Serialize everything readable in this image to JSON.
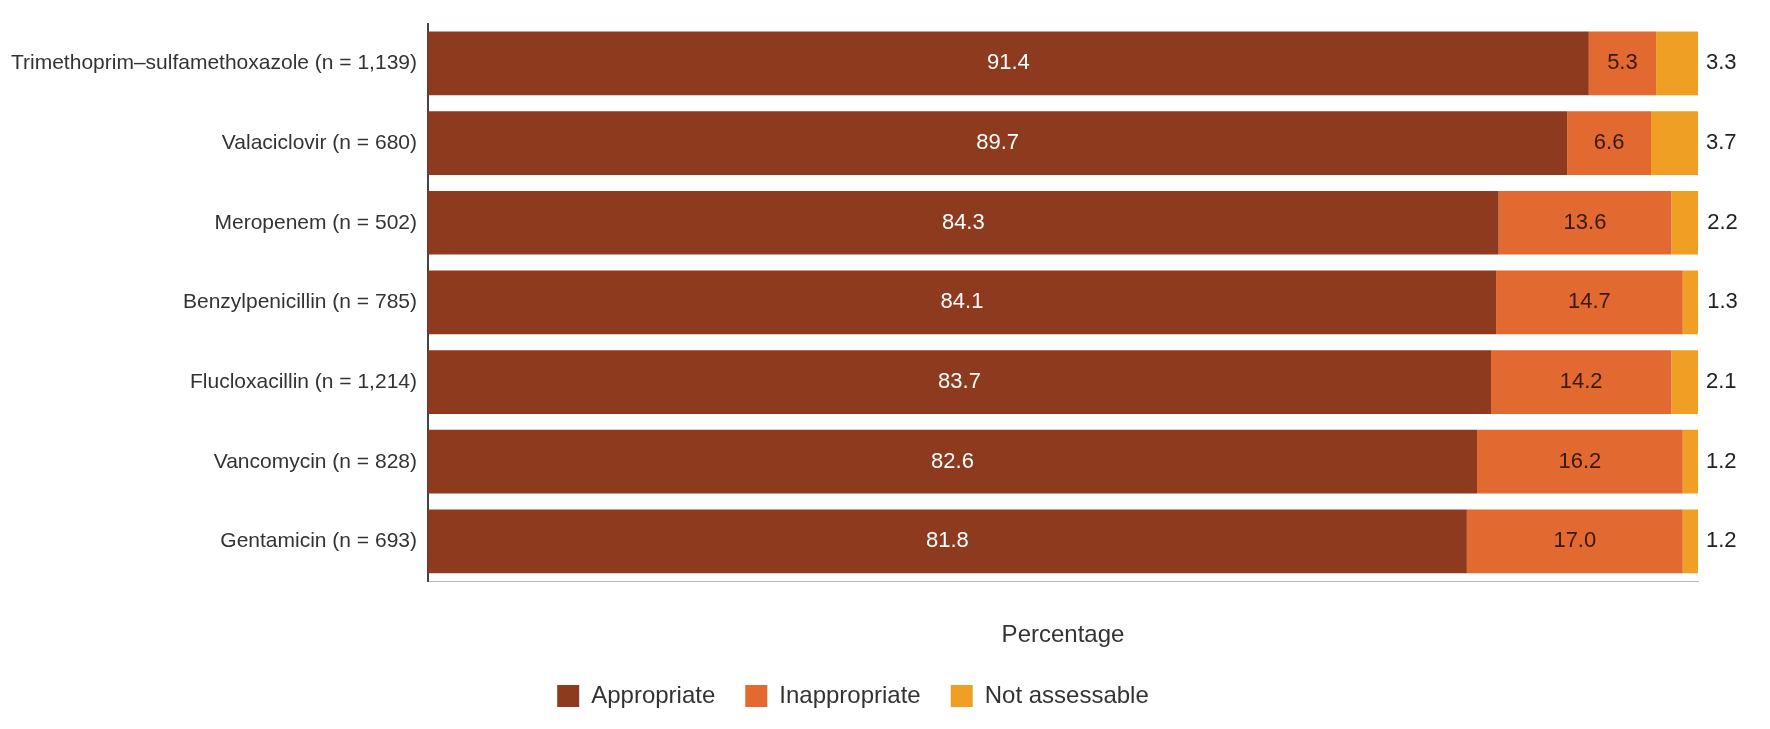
{
  "chart_data": {
    "type": "bar",
    "orientation": "horizontal",
    "stacked": true,
    "xlabel": "Percentage",
    "xlim": [
      0,
      100
    ],
    "tick_labels": "y",
    "grid": false,
    "legend": "bottom",
    "categories": [
      "Trimethoprim–sulfamethoxazole (n = 1,139)",
      "Valaciclovir (n = 680)",
      "Meropenem (n = 502)",
      "Benzylpenicillin (n = 785)",
      "Flucloxacillin (n = 1,214)",
      "Vancomycin (n = 828)",
      "Gentamicin (n = 693)"
    ],
    "series": [
      {
        "name": "Appropriate",
        "color": "#8e3a1e",
        "values": [
          91.4,
          89.7,
          84.3,
          84.1,
          83.7,
          82.6,
          81.8
        ],
        "value_labels": [
          "91.4",
          "89.7",
          "84.3",
          "84.1",
          "83.7",
          "82.6",
          "81.8"
        ]
      },
      {
        "name": "Inappropriate",
        "color": "#e2692f",
        "values": [
          5.3,
          6.6,
          13.6,
          14.7,
          14.2,
          16.2,
          17.0
        ],
        "value_labels": [
          "5.3",
          "6.6",
          "13.6",
          "14.7",
          "14.2",
          "16.2",
          "17.0"
        ]
      },
      {
        "name": "Not assessable",
        "color": "#efa024",
        "values": [
          3.3,
          3.7,
          2.2,
          1.3,
          2.1,
          1.2,
          1.2
        ],
        "value_labels": [
          "3.3",
          "3.7",
          "2.2",
          "1.3",
          "2.1",
          "1.2",
          "1.2"
        ]
      }
    ]
  }
}
